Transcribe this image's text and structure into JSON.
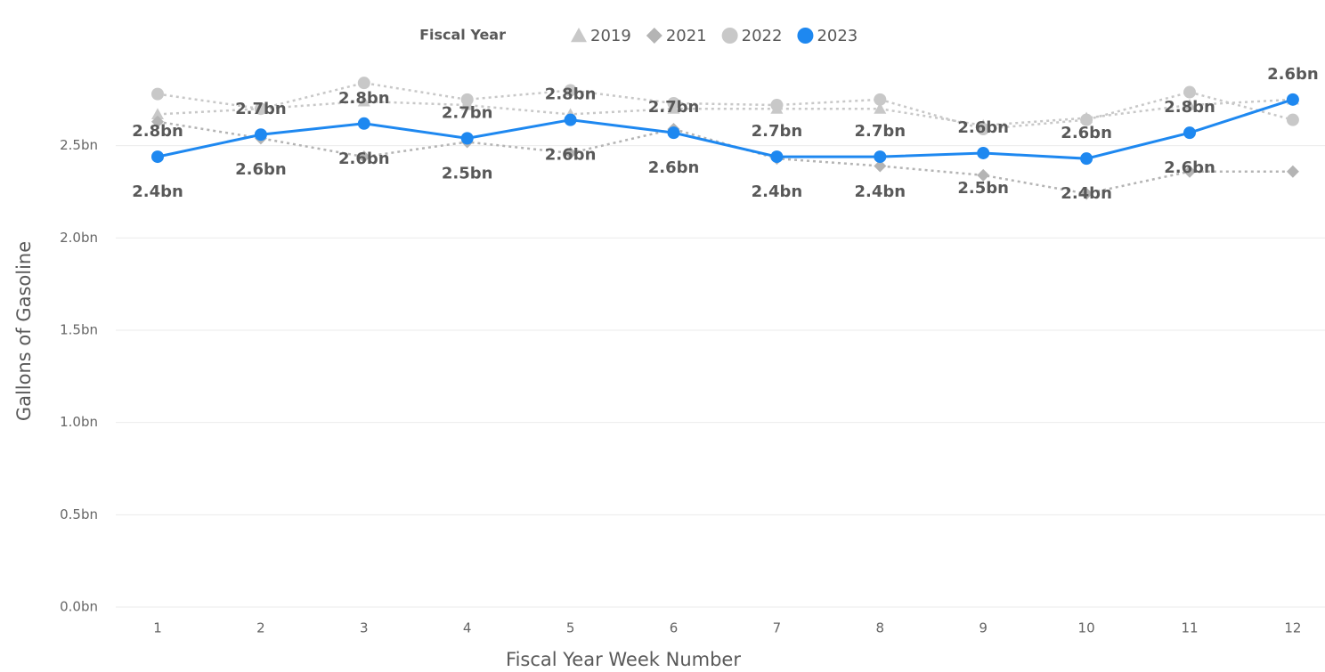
{
  "chart_data": {
    "type": "line",
    "legend_title": "Fiscal Year",
    "x_label": "Fiscal Year Week Number",
    "y_label": "Gallons of Gasoline",
    "categories": [
      "1",
      "2",
      "3",
      "4",
      "5",
      "6",
      "7",
      "8",
      "9",
      "10",
      "11",
      "12"
    ],
    "ylim": [
      0,
      3
    ],
    "yticks": [
      {
        "value": 0,
        "label": "0.0bn"
      },
      {
        "value": 0.5,
        "label": "0.5bn"
      },
      {
        "value": 1,
        "label": "1.0bn"
      },
      {
        "value": 1.5,
        "label": "1.5bn"
      },
      {
        "value": 2,
        "label": "2.0bn"
      },
      {
        "value": 2.5,
        "label": "2.5bn"
      }
    ],
    "grid": true,
    "legend": "top",
    "series": [
      {
        "name": "2019",
        "color": "#c8c8c8",
        "marker": "triangle",
        "line_style": "dotted",
        "values": [
          2.67,
          2.7,
          2.74,
          2.72,
          2.67,
          2.7,
          2.7,
          2.7,
          2.61,
          2.65,
          2.72,
          2.75
        ]
      },
      {
        "name": "2021",
        "color": "#b4b4b4",
        "marker": "diamond",
        "line_style": "dotted",
        "values": [
          2.63,
          2.54,
          2.44,
          2.52,
          2.46,
          2.59,
          2.43,
          2.39,
          2.34,
          2.24,
          2.36,
          2.36
        ]
      },
      {
        "name": "2022",
        "color": "#c8c8c8",
        "marker": "circle",
        "line_style": "dotted",
        "label_pos": "above",
        "values": [
          2.78,
          2.7,
          2.84,
          2.75,
          2.8,
          2.73,
          2.72,
          2.75,
          2.59,
          2.64,
          2.79,
          2.64
        ],
        "value_labels": [
          "2.8bn",
          "2.7bn",
          "2.8bn",
          "2.7bn",
          "2.8bn",
          "2.7bn",
          "2.7bn",
          "2.7bn",
          "2.6bn",
          "2.6bn",
          "2.8bn",
          "2.6bn"
        ]
      },
      {
        "name": "2023",
        "color": "#1e88f0",
        "marker": "circle",
        "line_style": "solid",
        "label_pos": "below",
        "values": [
          2.44,
          2.56,
          2.62,
          2.54,
          2.64,
          2.57,
          2.44,
          2.44,
          2.46,
          2.43,
          2.57,
          2.75
        ],
        "value_labels": [
          "2.4bn",
          "2.6bn",
          "2.6bn",
          "2.5bn",
          "2.6bn",
          "2.6bn",
          "2.4bn",
          "2.4bn",
          "2.5bn",
          "2.4bn",
          "2.6bn",
          null
        ]
      }
    ]
  }
}
